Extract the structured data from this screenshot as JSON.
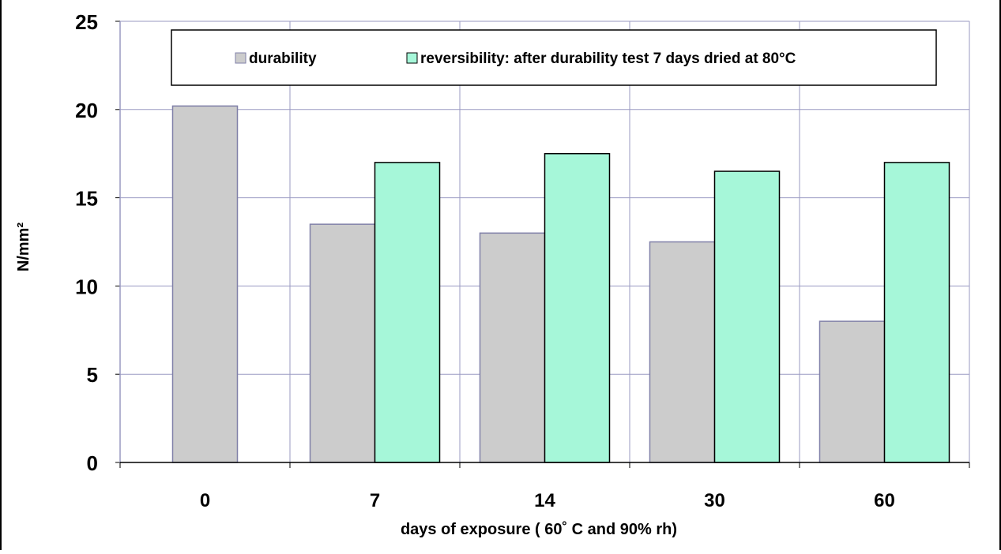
{
  "chart_data": {
    "type": "bar",
    "title": "",
    "xlabel": "days of exposure ( 60˚ C and 90% rh)",
    "ylabel": "N/mm²",
    "categories": [
      "0",
      "7",
      "14",
      "30",
      "60"
    ],
    "ylim": [
      0,
      25
    ],
    "yticks": [
      "0",
      "5",
      "10",
      "15",
      "20",
      "25"
    ],
    "grid": true,
    "legend_position": "top",
    "series": [
      {
        "name": "durability",
        "values": [
          20.2,
          13.5,
          13.0,
          12.5,
          8.0
        ],
        "color": "#cccccc"
      },
      {
        "name": "reversibility: after durability test 7 days dried at 80°C",
        "values": [
          null,
          17.0,
          17.5,
          16.5,
          17.0
        ],
        "color": "#a6f7d9"
      }
    ]
  },
  "colors": {
    "gridline": "#9a9ac2",
    "bar_border": "#000000"
  }
}
